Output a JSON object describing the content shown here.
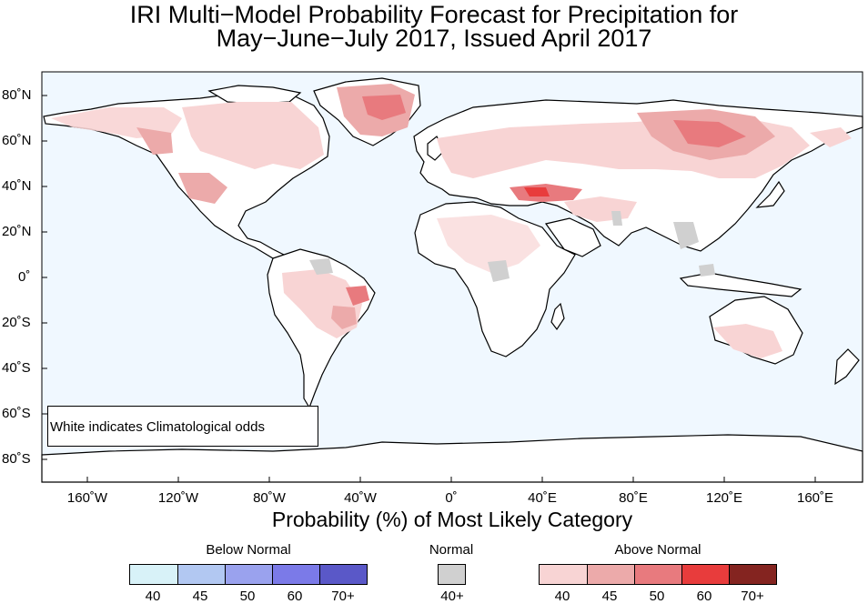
{
  "title": {
    "line1": "IRI Multi−Model Probability Forecast for Precipitation for",
    "line2": "May−June−July 2017, Issued April 2017"
  },
  "map": {
    "ocean_color": "#f0f8ff",
    "land_color": "#ffffff",
    "lat_labels": [
      "80˚N",
      "60˚N",
      "40˚N",
      "20˚N",
      "0˚",
      "20˚S",
      "40˚S",
      "60˚S",
      "80˚S"
    ],
    "lon_labels": [
      "160˚W",
      "120˚W",
      "80˚W",
      "40˚W",
      "0˚",
      "40˚E",
      "80˚E",
      "120˚E",
      "160˚E"
    ],
    "note": "White indicates Climatological odds"
  },
  "axis_title": "Probability (%) of Most Likely Category",
  "legend": {
    "below": {
      "title": "Below Normal",
      "colors": [
        "#d8f2f8",
        "#b2c8f2",
        "#9aa2ee",
        "#7b7ae8",
        "#5a58c8"
      ],
      "ticks": [
        "40",
        "45",
        "50",
        "60",
        "70+"
      ]
    },
    "normal": {
      "title": "Normal",
      "color": "#d0d0d0",
      "tick": "40+"
    },
    "above": {
      "title": "Above Normal",
      "colors": [
        "#f8d4d4",
        "#ecaaaa",
        "#e87a7e",
        "#e83c3c",
        "#842420"
      ],
      "ticks": [
        "40",
        "45",
        "50",
        "60",
        "70+"
      ]
    }
  }
}
